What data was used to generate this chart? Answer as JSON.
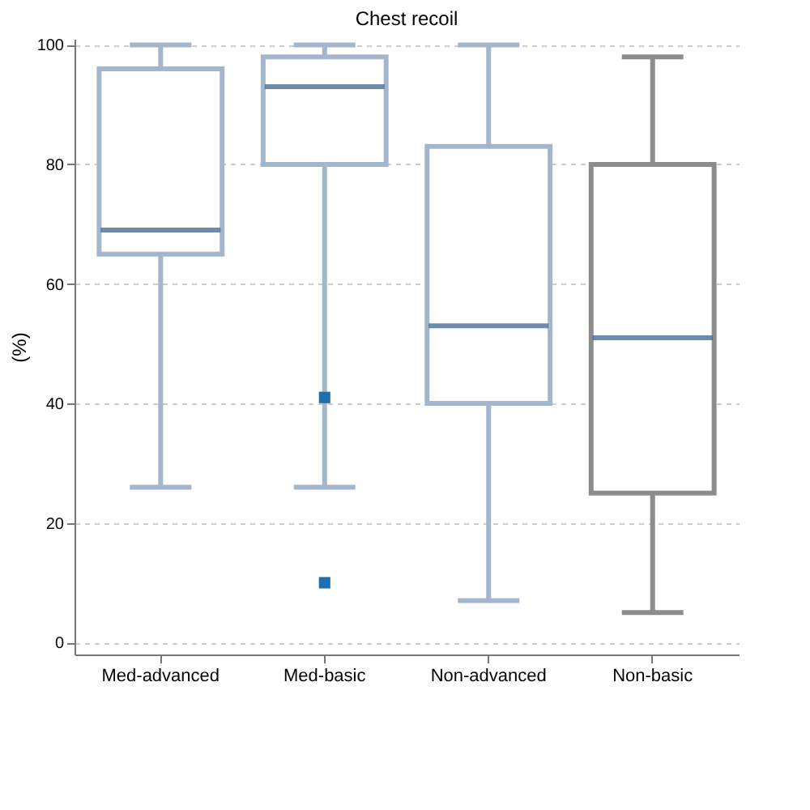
{
  "chart_data": {
    "type": "box",
    "title": "Chest recoil",
    "ylabel": "(%)",
    "categories": [
      "Med-advanced",
      "Med-basic",
      "Non-advanced",
      "Non-basic"
    ],
    "boxes": [
      {
        "low": 26,
        "q1": 65,
        "median": 69,
        "q3": 96,
        "high": 100
      },
      {
        "low": 26,
        "q1": 80,
        "median": 93,
        "q3": 98,
        "high": 100,
        "outliers": [
          41,
          10
        ]
      },
      {
        "low": 7,
        "q1": 40,
        "median": 53,
        "q3": 83,
        "high": 100
      },
      {
        "low": 5,
        "q1": 25,
        "median": 51,
        "q3": 80,
        "high": 98
      }
    ],
    "colors": [
      "#a3b6cc",
      "#a3b6cc",
      "#a3b6cc",
      "#8c8c8c"
    ],
    "ylim": [
      -2,
      101
    ],
    "yticks": [
      0,
      20,
      40,
      60,
      80,
      100
    ],
    "grid": "y"
  }
}
